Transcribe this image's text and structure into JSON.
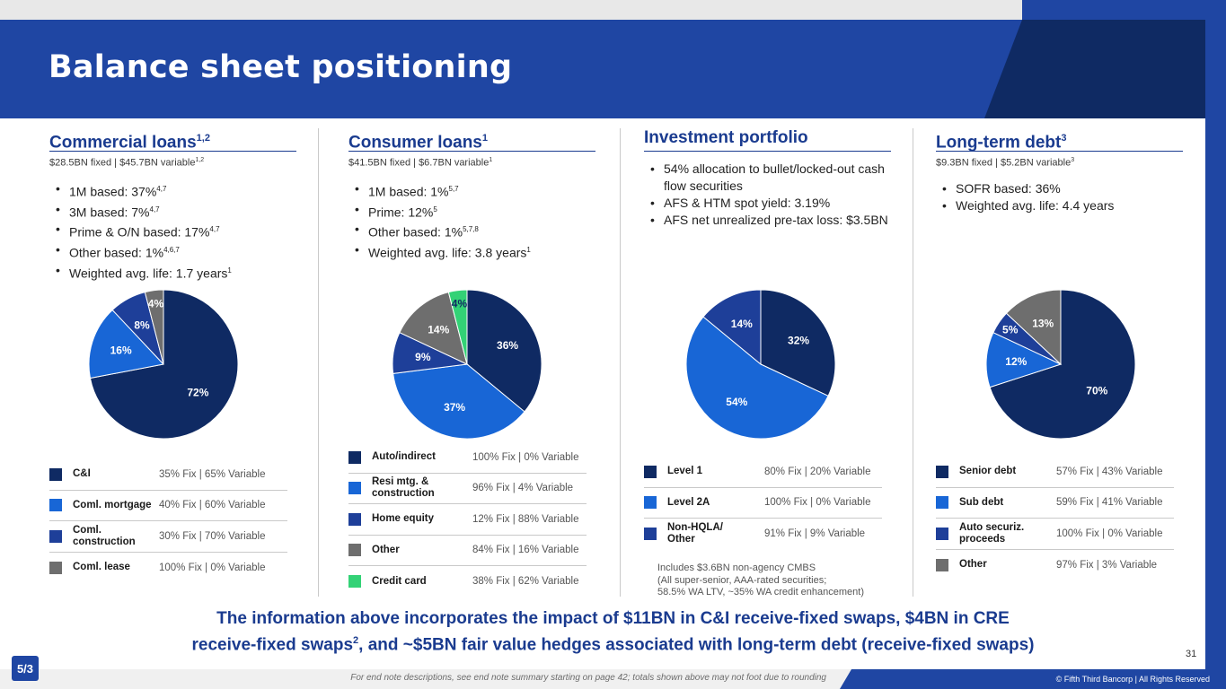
{
  "title": "Balance sheet positioning",
  "colors": {
    "navy": "#0f2a63",
    "blue": "#1866d6",
    "mid": "#1e3f99",
    "gray": "#6e6e6e",
    "green": "#33d276",
    "accent": "#1a3b8f"
  },
  "commercial": {
    "heading": "Commercial loans",
    "heading_sup": "1,2",
    "subtitle": "$28.5BN fixed | $45.7BN variable",
    "subtitle_sup": "1,2",
    "bullets": [
      {
        "text": "1M based: 37%",
        "sup": "4,7"
      },
      {
        "text": "3M based: 7%",
        "sup": "4,7"
      },
      {
        "text": "Prime & O/N based: 17%",
        "sup": "4,7"
      },
      {
        "text": "Other based: 1%",
        "sup": "4,6,7"
      },
      {
        "text": "Weighted avg. life: 1.7 years",
        "sup": "1"
      }
    ],
    "legend": [
      {
        "name": "C&I",
        "value": "35% Fix | 65% Variable"
      },
      {
        "name": "Coml. mortgage",
        "value": "40% Fix | 60% Variable"
      },
      {
        "name": "Coml. construction",
        "value": "30% Fix | 70% Variable"
      },
      {
        "name": "Coml. lease",
        "value": "100% Fix | 0% Variable"
      }
    ],
    "chart_data": {
      "type": "pie",
      "slices": [
        {
          "label": "72%",
          "value": 72,
          "color": "#0f2a63"
        },
        {
          "label": "16%",
          "value": 16,
          "color": "#1866d6"
        },
        {
          "label": "8%",
          "value": 8,
          "color": "#1e3f99"
        },
        {
          "label": "4%",
          "value": 4,
          "color": "#6e6e6e"
        }
      ]
    }
  },
  "consumer": {
    "heading": "Consumer loans",
    "heading_sup": "1",
    "subtitle": "$41.5BN fixed | $6.7BN variable",
    "subtitle_sup": "1",
    "bullets": [
      {
        "text": "1M based: 1%",
        "sup": "5,7"
      },
      {
        "text": "Prime: 12%",
        "sup": "5"
      },
      {
        "text": "Other based: 1%",
        "sup": "5,7,8"
      },
      {
        "text": "Weighted avg. life: 3.8 years",
        "sup": "1"
      }
    ],
    "legend": [
      {
        "name": "Auto/indirect",
        "value": "100% Fix | 0% Variable"
      },
      {
        "name": "Resi mtg. & construction",
        "value": "96% Fix | 4% Variable"
      },
      {
        "name": "Home equity",
        "value": "12% Fix | 88% Variable"
      },
      {
        "name": "Other",
        "value": "84% Fix | 16% Variable"
      },
      {
        "name": "Credit card",
        "value": "38% Fix | 62% Variable"
      }
    ],
    "chart_data": {
      "type": "pie",
      "slices": [
        {
          "label": "36%",
          "value": 36,
          "color": "#0f2a63"
        },
        {
          "label": "37%",
          "value": 37,
          "color": "#1866d6"
        },
        {
          "label": "9%",
          "value": 9,
          "color": "#1e3f99"
        },
        {
          "label": "14%",
          "value": 14,
          "color": "#6e6e6e"
        },
        {
          "label": "4%",
          "value": 4,
          "color": "#33d276"
        }
      ]
    }
  },
  "investment": {
    "heading": "Investment portfolio",
    "bullets": [
      {
        "text": "54% allocation to bullet/locked-out cash flow securities"
      },
      {
        "text": "AFS & HTM spot yield: 3.19%"
      },
      {
        "text": "AFS net unrealized pre-tax loss: $3.5BN"
      }
    ],
    "legend": [
      {
        "name": "Level 1",
        "value": "80% Fix | 20% Variable"
      },
      {
        "name": "Level 2A",
        "value": "100% Fix | 0% Variable"
      },
      {
        "name": "Non-HQLA/ Other",
        "value": "91% Fix | 9% Variable"
      }
    ],
    "note": [
      "Includes $3.6BN non-agency CMBS",
      "(All super-senior, AAA-rated securities;",
      "58.5% WA LTV, ~35% WA credit enhancement)"
    ],
    "chart_data": {
      "type": "pie",
      "slices": [
        {
          "label": "32%",
          "value": 32,
          "color": "#0f2a63"
        },
        {
          "label": "54%",
          "value": 54,
          "color": "#1866d6"
        },
        {
          "label": "14%",
          "value": 14,
          "color": "#1e3f99"
        }
      ]
    }
  },
  "debt": {
    "heading": "Long-term debt",
    "heading_sup": "3",
    "subtitle": "$9.3BN fixed | $5.2BN variable",
    "subtitle_sup": "3",
    "bullets": [
      {
        "text": "SOFR based: 36%"
      },
      {
        "text": "Weighted avg. life: 4.4 years"
      }
    ],
    "legend": [
      {
        "name": "Senior debt",
        "value": "57% Fix | 43% Variable"
      },
      {
        "name": "Sub debt",
        "value": "59% Fix | 41% Variable"
      },
      {
        "name": "Auto securiz. proceeds",
        "value": "100% Fix | 0% Variable"
      },
      {
        "name": "Other",
        "value": "97% Fix | 3% Variable"
      }
    ],
    "chart_data": {
      "type": "pie",
      "slices": [
        {
          "label": "70%",
          "value": 70,
          "color": "#0f2a63"
        },
        {
          "label": "12%",
          "value": 12,
          "color": "#1866d6"
        },
        {
          "label": "5%",
          "value": 5,
          "color": "#1e3f99"
        },
        {
          "label": "13%",
          "value": 13,
          "color": "#6e6e6e"
        }
      ]
    }
  },
  "bottom": {
    "line1": "The information above incorporates the impact of $11BN in C&I receive-fixed swaps, $4BN in CRE",
    "line2a": "receive-fixed swaps",
    "line2_sup": "2",
    "line2b": ", and ~$5BN fair value hedges associated with long-term debt (receive-fixed swaps)"
  },
  "page_number": "31",
  "footnote": "For end note descriptions, see end note summary starting on page 42; totals shown above may not foot due to rounding",
  "copyright": "© Fifth Third Bancorp | All Rights Reserved",
  "logo_text": "5/3"
}
